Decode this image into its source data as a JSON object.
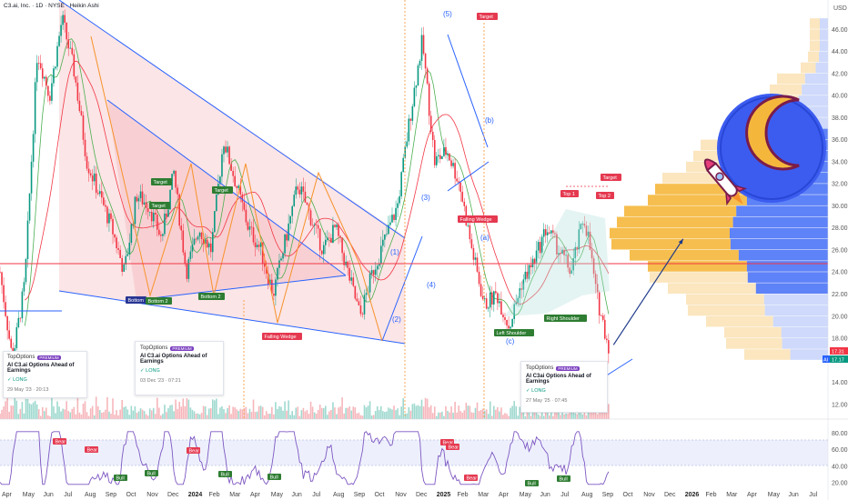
{
  "header": {
    "symbol_line": "C3.ai, Inc. · 1D · NYSE · Heikin Ashi"
  },
  "currency": "USD",
  "price_tags": [
    "17.31",
    "17.17"
  ],
  "price_tag_prefix": "AI",
  "chart_data": {
    "type": "candlestick",
    "price_axis": {
      "ticks": [
        12,
        14,
        16,
        18,
        20,
        22,
        24,
        26,
        28,
        30,
        32,
        34,
        36,
        38,
        40,
        42,
        44,
        46
      ],
      "ylim": [
        11,
        48
      ]
    },
    "time_axis": {
      "labels": [
        {
          "text": "Apr",
          "bold": false
        },
        {
          "text": "May",
          "bold": false
        },
        {
          "text": "Jun",
          "bold": false
        },
        {
          "text": "Jul",
          "bold": false
        },
        {
          "text": "Aug",
          "bold": false
        },
        {
          "text": "Sep",
          "bold": false
        },
        {
          "text": "Oct",
          "bold": false
        },
        {
          "text": "Nov",
          "bold": false
        },
        {
          "text": "Dec",
          "bold": false
        },
        {
          "text": "2024",
          "bold": true
        },
        {
          "text": "Feb",
          "bold": false
        },
        {
          "text": "Mar",
          "bold": false
        },
        {
          "text": "Apr",
          "bold": false
        },
        {
          "text": "May",
          "bold": false
        },
        {
          "text": "Jun",
          "bold": false
        },
        {
          "text": "Jul",
          "bold": false
        },
        {
          "text": "Aug",
          "bold": false
        },
        {
          "text": "Sep",
          "bold": false
        },
        {
          "text": "Oct",
          "bold": false
        },
        {
          "text": "Nov",
          "bold": false
        },
        {
          "text": "Dec",
          "bold": false
        },
        {
          "text": "2025",
          "bold": true
        },
        {
          "text": "Feb",
          "bold": false
        },
        {
          "text": "Mar",
          "bold": false
        },
        {
          "text": "Apr",
          "bold": false
        },
        {
          "text": "May",
          "bold": false
        },
        {
          "text": "Jun",
          "bold": false
        },
        {
          "text": "Jul",
          "bold": false
        },
        {
          "text": "Aug",
          "bold": false
        },
        {
          "text": "Sep",
          "bold": false
        },
        {
          "text": "Oct",
          "bold": false
        },
        {
          "text": "Nov",
          "bold": false
        },
        {
          "text": "Dec",
          "bold": false
        },
        {
          "text": "2026",
          "bold": true
        },
        {
          "text": "Feb",
          "bold": false
        },
        {
          "text": "Mar",
          "bold": false
        },
        {
          "text": "Apr",
          "bold": false
        },
        {
          "text": "May",
          "bold": false
        },
        {
          "text": "Jun",
          "bold": false
        },
        {
          "text": "Jul",
          "bold": false
        }
      ]
    },
    "rsi_axis": {
      "ticks": [
        20,
        40,
        60,
        80
      ],
      "ylim": [
        10,
        95
      ]
    },
    "price_path": [
      [
        2023.25,
        24
      ],
      [
        2023.3,
        16
      ],
      [
        2023.35,
        23
      ],
      [
        2023.4,
        44
      ],
      [
        2023.45,
        40
      ],
      [
        2023.5,
        47
      ],
      [
        2023.55,
        42
      ],
      [
        2023.6,
        34
      ],
      [
        2023.65,
        31
      ],
      [
        2023.7,
        28
      ],
      [
        2023.75,
        24
      ],
      [
        2023.8,
        31
      ],
      [
        2023.85,
        30
      ],
      [
        2023.9,
        27
      ],
      [
        2023.95,
        33
      ],
      [
        2024.0,
        24
      ],
      [
        2024.05,
        28
      ],
      [
        2024.1,
        26
      ],
      [
        2024.15,
        36
      ],
      [
        2024.2,
        32
      ],
      [
        2024.25,
        28
      ],
      [
        2024.3,
        26
      ],
      [
        2024.35,
        22
      ],
      [
        2024.4,
        27
      ],
      [
        2024.45,
        32
      ],
      [
        2024.5,
        29
      ],
      [
        2024.55,
        26
      ],
      [
        2024.6,
        28
      ],
      [
        2024.65,
        24
      ],
      [
        2024.7,
        20
      ],
      [
        2024.75,
        24
      ],
      [
        2024.8,
        27
      ],
      [
        2024.85,
        30
      ],
      [
        2024.9,
        38
      ],
      [
        2024.95,
        45
      ],
      [
        2025.0,
        34
      ],
      [
        2025.05,
        35
      ],
      [
        2025.1,
        32
      ],
      [
        2025.15,
        26
      ],
      [
        2025.2,
        21
      ],
      [
        2025.25,
        22
      ],
      [
        2025.3,
        19
      ],
      [
        2025.35,
        23
      ],
      [
        2025.4,
        25
      ],
      [
        2025.45,
        28
      ],
      [
        2025.5,
        26
      ],
      [
        2025.55,
        24
      ],
      [
        2025.6,
        29
      ],
      [
        2025.62,
        27
      ],
      [
        2025.65,
        22
      ],
      [
        2025.7,
        17.3
      ]
    ],
    "projection": {
      "from": [
        2025.72,
        17.4
      ],
      "to": [
        2026.0,
        27
      ]
    },
    "horizontal_line": 25.4,
    "annotations": {
      "labels": [
        {
          "text": "Target",
          "kind": "green"
        },
        {
          "text": "Target",
          "kind": "green"
        },
        {
          "text": "Target",
          "kind": "green"
        },
        {
          "text": "Bottom",
          "kind": "navy"
        },
        {
          "text": "Bottom 2",
          "kind": "green"
        },
        {
          "text": "Bottom 2",
          "kind": "green"
        },
        {
          "text": "Falling Wedge",
          "kind": "red"
        },
        {
          "text": "Falling Wedge",
          "kind": "red"
        },
        {
          "text": "Target",
          "kind": "red"
        },
        {
          "text": "Top 1",
          "kind": "red"
        },
        {
          "text": "Top 2",
          "kind": "red"
        },
        {
          "text": "Target",
          "kind": "red"
        },
        {
          "text": "Left Shoulder",
          "kind": "green"
        },
        {
          "text": "Right Shoulder",
          "kind": "green"
        }
      ],
      "waves": [
        "(1)",
        "(2)",
        "(3)",
        "(4)",
        "(5)",
        "(a)",
        "(b)",
        "(c)"
      ],
      "rsi_signals": [
        {
          "text": "Bear",
          "kind": "red"
        },
        {
          "text": "Bear",
          "kind": "red"
        },
        {
          "text": "Bear",
          "kind": "red"
        },
        {
          "text": "Bear",
          "kind": "red"
        },
        {
          "text": "Bull",
          "kind": "green"
        },
        {
          "text": "Bull",
          "kind": "green"
        },
        {
          "text": "Bull",
          "kind": "green"
        },
        {
          "text": "Bull",
          "kind": "green"
        },
        {
          "text": "Bear",
          "kind": "red"
        },
        {
          "text": "Bear",
          "kind": "red"
        },
        {
          "text": "Bull",
          "kind": "green"
        },
        {
          "text": "Bull",
          "kind": "green"
        }
      ]
    }
  },
  "ideas": [
    {
      "brand": "TopOptions",
      "badge": "PREMIUM",
      "title": "AI C3.ai Options Ahead of Earnings",
      "direction": "LONG",
      "timestamp": "29 May '23 · 20:13"
    },
    {
      "brand": "TopOptions",
      "badge": "PREMIUM",
      "title": "AI C3.ai Options Ahead of Earnings",
      "direction": "LONG",
      "timestamp": "03 Dec '23 · 07:21"
    },
    {
      "brand": "TopOptions",
      "badge": "PREMIUM",
      "title": "AI C3ai Options Ahead of Earnings",
      "direction": "LONG",
      "timestamp": "27 May '25 · 07:45"
    }
  ],
  "colors": {
    "up": "#089981",
    "down": "#f23645",
    "wedge": "#f7c7c7",
    "volume_profile_up": "#f5b73b",
    "volume_profile_down": "#4d74f6",
    "rsi": "#7e57c2"
  }
}
